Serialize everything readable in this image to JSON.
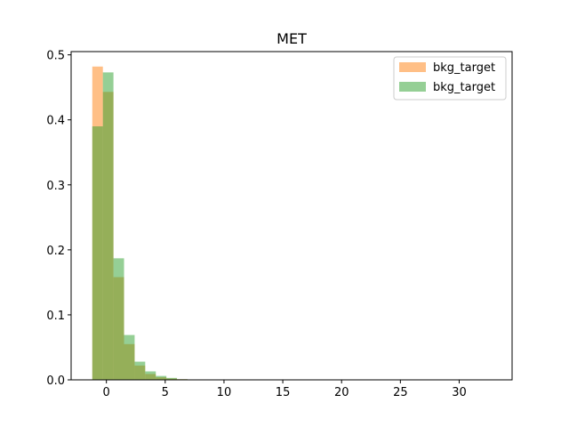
{
  "chart_data": {
    "type": "bar",
    "title": "MET",
    "xlabel": "",
    "ylabel": "",
    "xlim": [
      -3.0,
      34.5
    ],
    "ylim": [
      0,
      0.505
    ],
    "x_ticks": [
      0,
      5,
      10,
      15,
      20,
      25,
      30
    ],
    "y_ticks": [
      0.0,
      0.1,
      0.2,
      0.3,
      0.4,
      0.5
    ],
    "bin_edges": [
      -1.2,
      -0.3,
      0.6,
      1.5,
      2.4,
      3.3,
      4.2,
      5.1,
      6.0,
      6.9
    ],
    "legend_position": "top-right",
    "series": [
      {
        "name": "bkg_target",
        "color": "#ff7f0e",
        "alpha": 0.5,
        "values": [
          0.482,
          0.443,
          0.158,
          0.055,
          0.022,
          0.009,
          0.004,
          0.002,
          0.001
        ]
      },
      {
        "name": "bkg_target",
        "color": "#2ca02c",
        "alpha": 0.5,
        "values": [
          0.39,
          0.473,
          0.187,
          0.069,
          0.028,
          0.013,
          0.006,
          0.003,
          0.001
        ]
      }
    ]
  }
}
